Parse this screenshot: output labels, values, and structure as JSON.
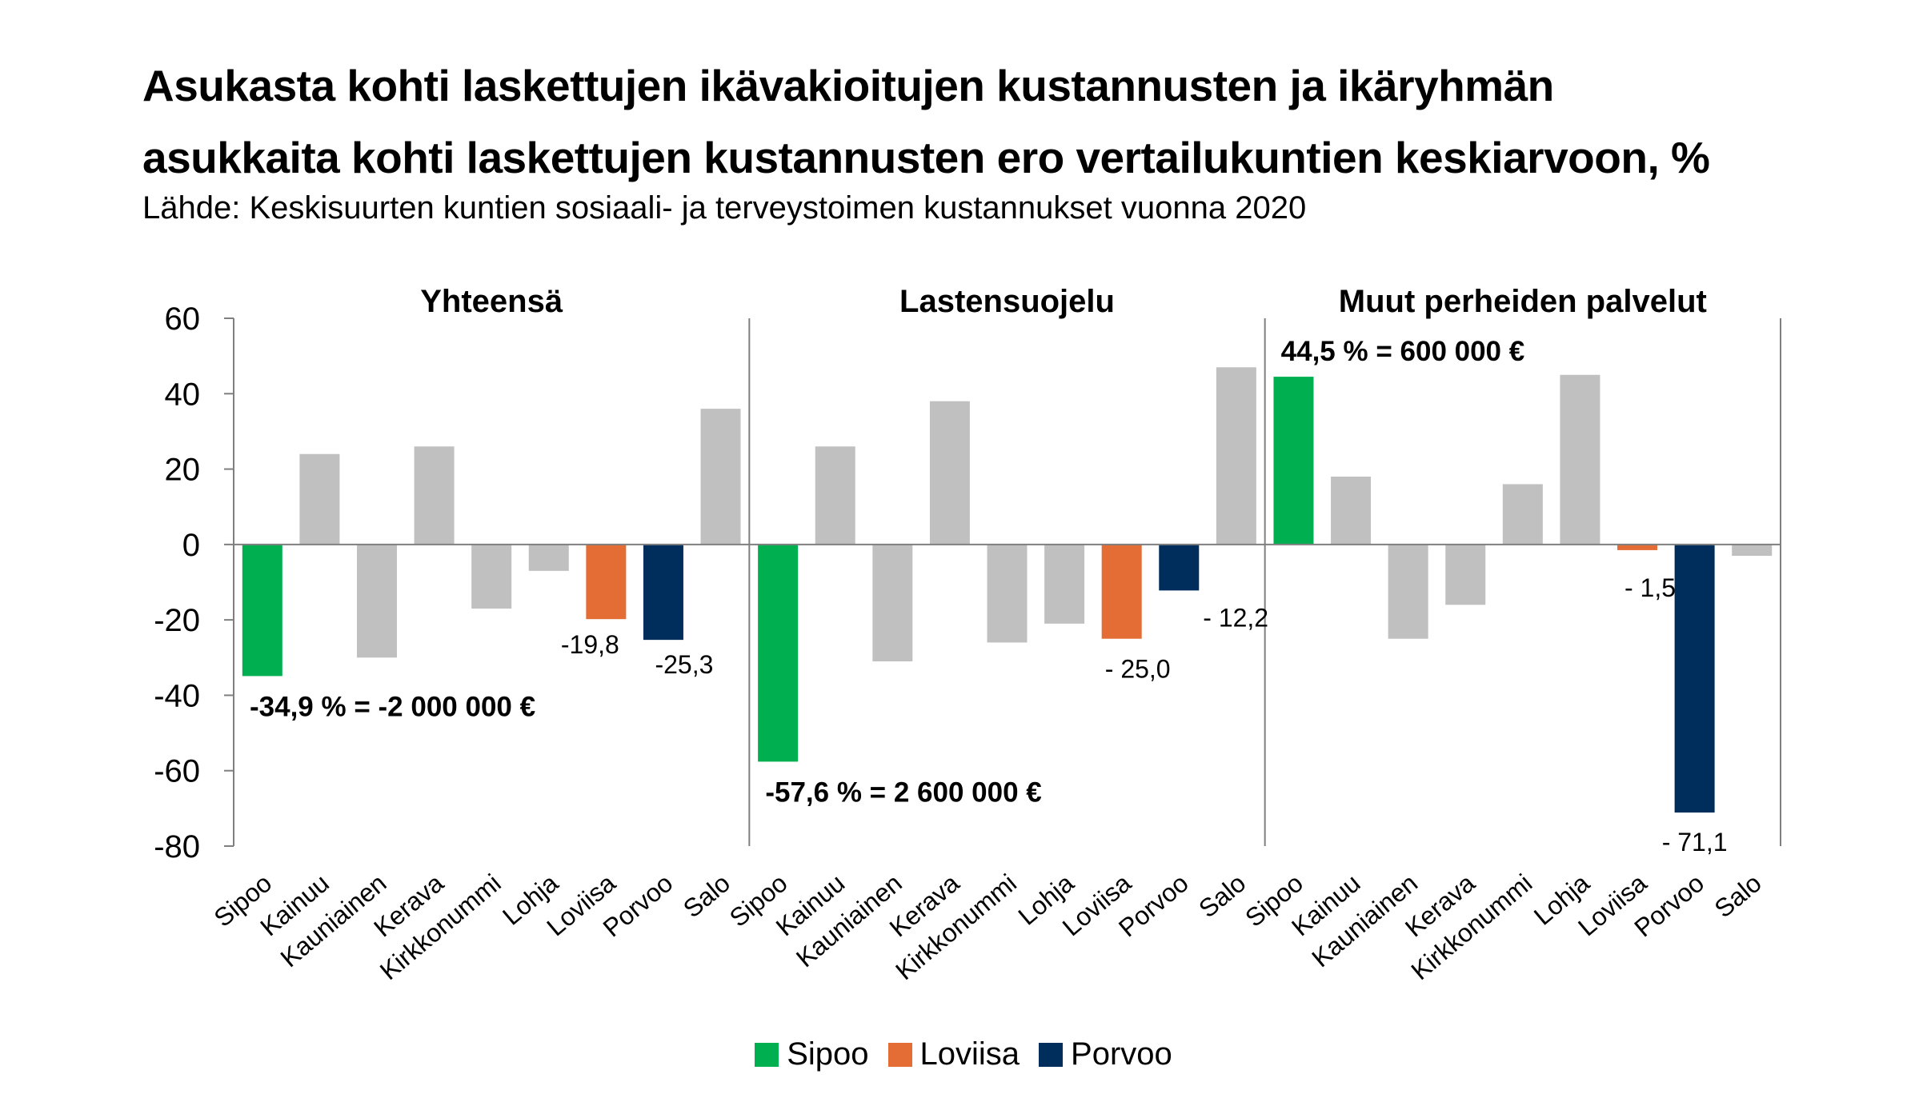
{
  "title_line1": "Asukasta kohti laskettujen ikävakioitujen kustannusten ja ikäryhmän",
  "title_line2": "asukkaita kohti laskettujen kustannusten ero vertailukuntien keskiarvoon, %",
  "subtitle": "Lähde: Keskisuurten kuntien sosiaali- ja terveystoimen kustannukset vuonna 2020",
  "colors": {
    "Sipoo": "#00b050",
    "Loviisa": "#e46c35",
    "Porvoo": "#002e5c",
    "other": "#c0c0c0",
    "axis": "#7f7f7f"
  },
  "legend": [
    {
      "label": "Sipoo",
      "color": "#00b050"
    },
    {
      "label": "Loviisa",
      "color": "#e46c35"
    },
    {
      "label": "Porvoo",
      "color": "#002e5c"
    }
  ],
  "chart_data": {
    "type": "bar",
    "ylim": [
      -80,
      60
    ],
    "yticks": [
      "60",
      "40",
      "20",
      "0",
      "-20",
      "-40",
      "-60",
      "-80"
    ],
    "ytick_values": [
      60,
      40,
      20,
      0,
      -20,
      -40,
      -60,
      -80
    ],
    "categories": [
      "Sipoo",
      "Kainuu",
      "Kauniainen",
      "Kerava",
      "Kirkkonummi",
      "Lohja",
      "Loviisa",
      "Porvoo",
      "Salo"
    ],
    "panels": [
      {
        "name": "Yhteensä",
        "values": [
          -34.9,
          24,
          -30,
          26,
          -17,
          -7,
          -19.8,
          -25.3,
          36
        ],
        "labels": [
          {
            "index": 6,
            "text": "-19,8"
          },
          {
            "index": 7,
            "text": "-25,3"
          }
        ],
        "annotation": "-34,9 % = -2 000 000 €"
      },
      {
        "name": "Lastensuojelu",
        "values": [
          -57.6,
          26,
          -31,
          38,
          -26,
          -21,
          -25.0,
          -12.2,
          47
        ],
        "labels": [
          {
            "index": 6,
            "text": "- 25,0"
          },
          {
            "index": 7,
            "text": "- 12,2"
          }
        ],
        "annotation": "-57,6 % = 2 600 000 €"
      },
      {
        "name": "Muut perheiden palvelut",
        "values": [
          44.5,
          18,
          -25,
          -16,
          16,
          45,
          -1.5,
          -71.1,
          -3
        ],
        "labels": [
          {
            "index": 6,
            "text": "- 1,5"
          },
          {
            "index": 7,
            "text": "- 71,1"
          }
        ],
        "annotation": "44,5 % = 600 000 €"
      }
    ]
  }
}
